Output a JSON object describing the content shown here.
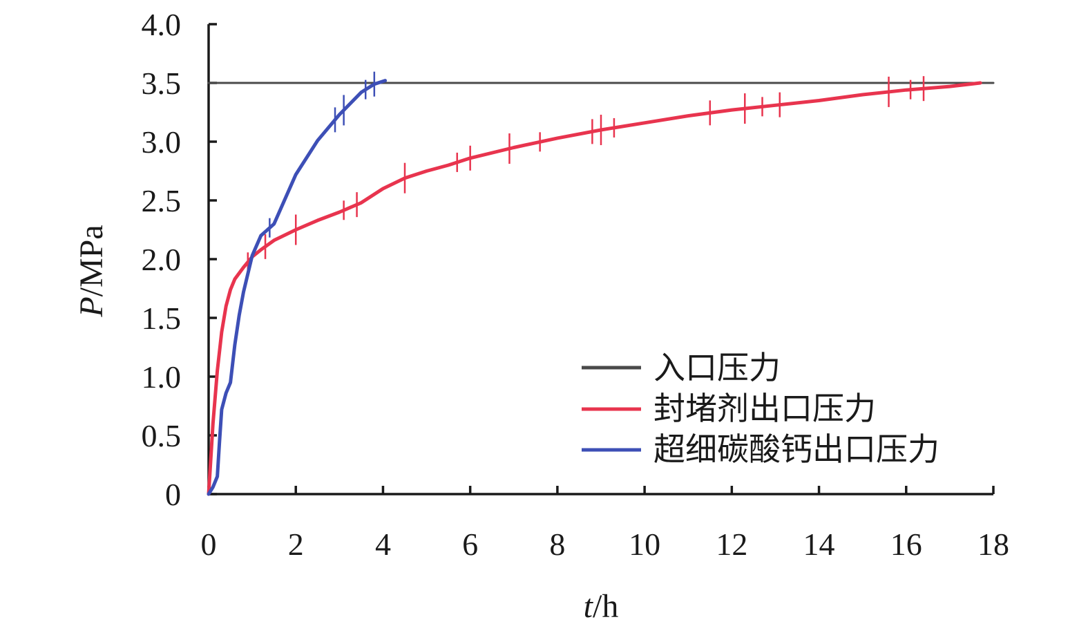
{
  "chart_data": {
    "type": "line",
    "xlabel": {
      "var": "t",
      "unit": "/h"
    },
    "ylabel": {
      "var": "P",
      "unit": "/MPa"
    },
    "xlim": [
      0,
      18
    ],
    "ylim": [
      0,
      4.0
    ],
    "xticks": [
      0,
      2,
      4,
      6,
      8,
      10,
      12,
      14,
      16,
      18
    ],
    "xtick_labels": [
      "0",
      "2",
      "4",
      "6",
      "8",
      "10",
      "12",
      "14",
      "16",
      "18"
    ],
    "yticks": [
      0,
      0.5,
      1.0,
      1.5,
      2.0,
      2.5,
      3.0,
      3.5,
      4.0
    ],
    "ytick_labels": [
      "0",
      "0.5",
      "1.0",
      "1.5",
      "2.0",
      "2.5",
      "3.0",
      "3.5",
      "4.0"
    ],
    "grid": false,
    "legend_position": "lower-right",
    "series": [
      {
        "name": "入口压力",
        "color": "#4a4a4a",
        "x": [
          0,
          18
        ],
        "y": [
          3.5,
          3.5
        ],
        "noise_x": []
      },
      {
        "name": "封堵剂出口压力",
        "color": "#e8344e",
        "x": [
          0,
          0.1,
          0.2,
          0.3,
          0.4,
          0.5,
          0.6,
          0.8,
          1.0,
          1.2,
          1.5,
          2.0,
          2.5,
          3.0,
          3.5,
          4.0,
          4.5,
          5.0,
          5.5,
          6.0,
          7.0,
          8.0,
          9.0,
          10.0,
          11.0,
          12.0,
          13.0,
          14.0,
          15.0,
          16.0,
          17.0,
          17.7
        ],
        "y": [
          0,
          0.6,
          1.05,
          1.38,
          1.6,
          1.74,
          1.83,
          1.93,
          2.02,
          2.08,
          2.16,
          2.25,
          2.33,
          2.4,
          2.48,
          2.6,
          2.69,
          2.75,
          2.8,
          2.86,
          2.95,
          3.03,
          3.1,
          3.16,
          3.22,
          3.27,
          3.31,
          3.35,
          3.4,
          3.44,
          3.47,
          3.5
        ],
        "noise_x": [
          0.9,
          1.3,
          2.0,
          3.1,
          3.4,
          4.5,
          5.7,
          6.0,
          6.9,
          7.6,
          8.8,
          9.0,
          9.3,
          11.5,
          12.3,
          12.7,
          13.1,
          15.6,
          16.1,
          16.4
        ]
      },
      {
        "name": "超细碳酸钙出口压力",
        "color": "#3d4fb6",
        "x": [
          0,
          0.1,
          0.2,
          0.25,
          0.3,
          0.4,
          0.5,
          0.6,
          0.7,
          0.8,
          1.0,
          1.2,
          1.5,
          2.0,
          2.5,
          3.0,
          3.5,
          3.8,
          4.05
        ],
        "y": [
          0,
          0.06,
          0.15,
          0.45,
          0.72,
          0.86,
          0.95,
          1.27,
          1.52,
          1.72,
          2.03,
          2.2,
          2.3,
          2.72,
          3.01,
          3.23,
          3.42,
          3.49,
          3.52
        ],
        "noise_x": [
          1.4,
          2.9,
          3.1,
          3.6,
          3.8
        ]
      }
    ]
  }
}
